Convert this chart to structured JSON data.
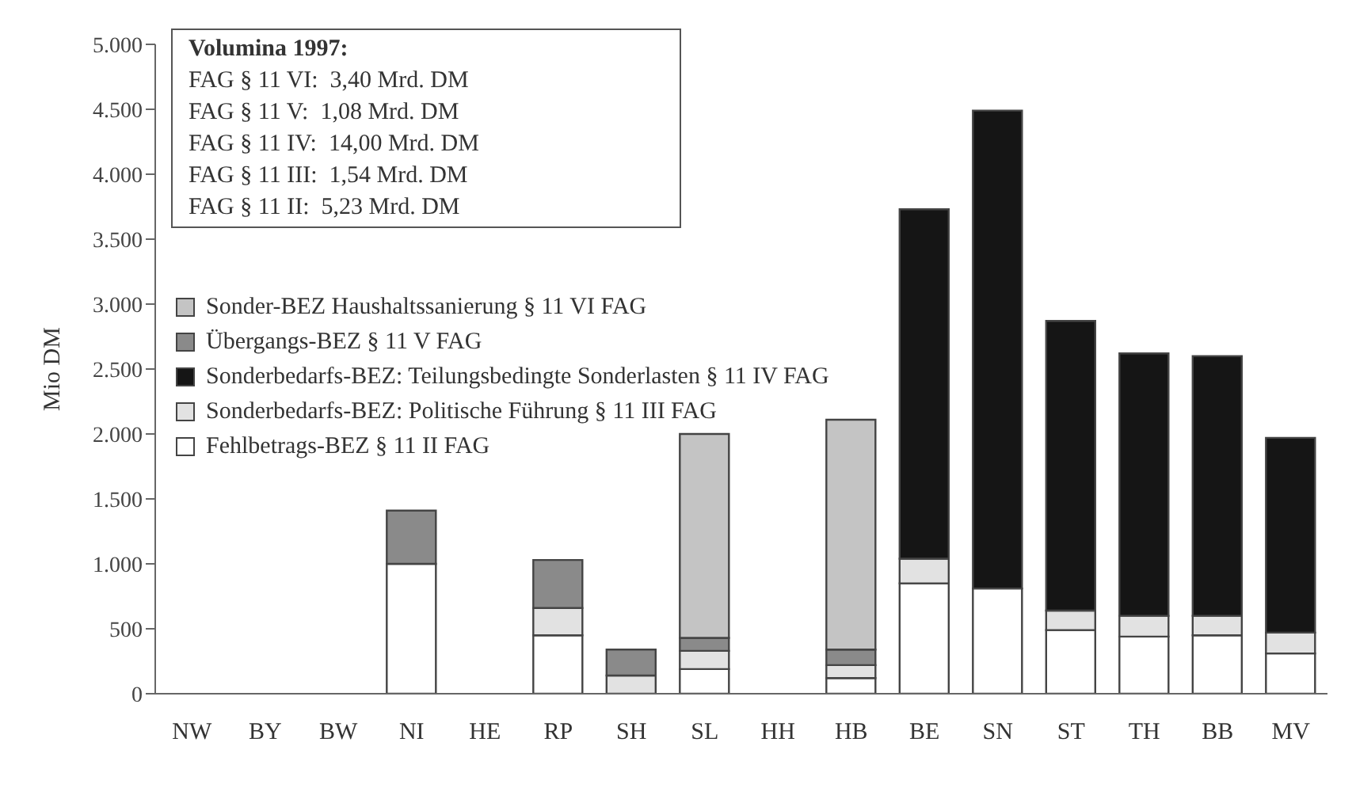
{
  "chart_data": {
    "type": "bar",
    "stacked": true,
    "ylabel": "Mio DM",
    "categories": [
      "NW",
      "BY",
      "BW",
      "NI",
      "HE",
      "RP",
      "SH",
      "SL",
      "HH",
      "HB",
      "BE",
      "SN",
      "ST",
      "TH",
      "BB",
      "MV"
    ],
    "series": [
      {
        "name": "Fehlbetrags-BEZ § 11 II FAG",
        "color": "#ffffff",
        "values": [
          0,
          0,
          0,
          1000,
          0,
          450,
          0,
          190,
          0,
          120,
          850,
          810,
          490,
          440,
          450,
          310
        ]
      },
      {
        "name": "Sonderbedarfs-BEZ: Politische Führung § 11 III FAG",
        "color": "#e2e2e2",
        "values": [
          0,
          0,
          0,
          0,
          0,
          210,
          140,
          140,
          0,
          100,
          190,
          0,
          150,
          160,
          150,
          160
        ]
      },
      {
        "name": "Sonderbedarfs-BEZ: Teilungsbedingte Sonderlasten § 11 IV FAG",
        "color": "#151515",
        "values": [
          0,
          0,
          0,
          0,
          0,
          0,
          0,
          0,
          0,
          0,
          2690,
          3680,
          2230,
          2020,
          2000,
          1500
        ]
      },
      {
        "name": "Übergangs-BEZ § 11 V FAG",
        "color": "#8a8a8a",
        "values": [
          0,
          0,
          0,
          410,
          0,
          370,
          200,
          100,
          0,
          120,
          0,
          0,
          0,
          0,
          0,
          0
        ]
      },
      {
        "name": "Sonder-BEZ Haushaltssanierung § 11 VI  FAG",
        "color": "#c4c4c4",
        "values": [
          0,
          0,
          0,
          0,
          0,
          0,
          0,
          1570,
          0,
          1770,
          0,
          0,
          0,
          0,
          0,
          0
        ]
      }
    ],
    "ylim": [
      0,
      5000
    ],
    "yticks": [
      {
        "value": 0,
        "label": "0"
      },
      {
        "value": 500,
        "label": "500"
      },
      {
        "value": 1000,
        "label": "1.000"
      },
      {
        "value": 1500,
        "label": "1.500"
      },
      {
        "value": 2000,
        "label": "2.000"
      },
      {
        "value": 2500,
        "label": "2.500"
      },
      {
        "value": 3000,
        "label": "3.000"
      },
      {
        "value": 3500,
        "label": "3.500"
      },
      {
        "value": 4000,
        "label": "4.000"
      },
      {
        "value": 4500,
        "label": "4.500"
      },
      {
        "value": 5000,
        "label": "5.000"
      }
    ],
    "grid": false,
    "legend": "left",
    "annotations": [
      "Volumina 1997:",
      "FAG § 11 VI:  3,40 Mrd. DM",
      "FAG § 11 V:  1,08 Mrd. DM",
      "FAG § 11 IV:  14,00 Mrd. DM",
      "FAG § 11 III:  1,54 Mrd. DM",
      "FAG § 11 II:  5,23 Mrd. DM"
    ]
  }
}
